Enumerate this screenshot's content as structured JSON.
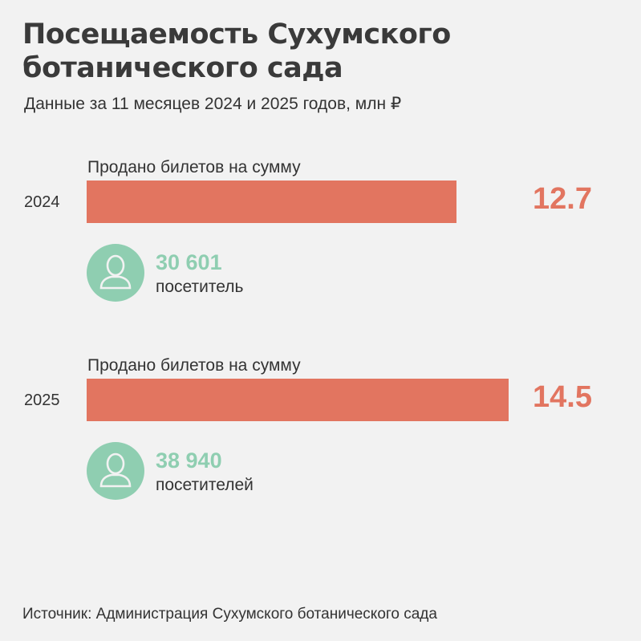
{
  "title": "Посещаемость Сухумского ботанического сада",
  "subtitle": "Данные за 11 месяцев 2024 и 2025 годов, млн ₽",
  "source": "Источник: Администрация Сухумского ботанического сада",
  "colors": {
    "bar": "#e27560",
    "accent_green": "#8fceb1",
    "background": "#f2f2f2"
  },
  "chart_data": {
    "type": "bar",
    "orientation": "horizontal",
    "title": "Посещаемость Сухумского ботанического сада",
    "subtitle": "Данные за 11 месяцев 2024 и 2025 годов, млн ₽",
    "categories": [
      "2024",
      "2025"
    ],
    "values": [
      12.7,
      14.5
    ],
    "value_labels": [
      "12.7",
      "14.5"
    ],
    "bar_label": "Продано билетов на сумму",
    "visitors": [
      {
        "count": "30 601",
        "label": "посетитель",
        "icon": "person-icon"
      },
      {
        "count": "38 940",
        "label": "посетителей",
        "icon": "person-icon"
      }
    ],
    "xlim": [
      0,
      14.5
    ],
    "grid": false
  }
}
